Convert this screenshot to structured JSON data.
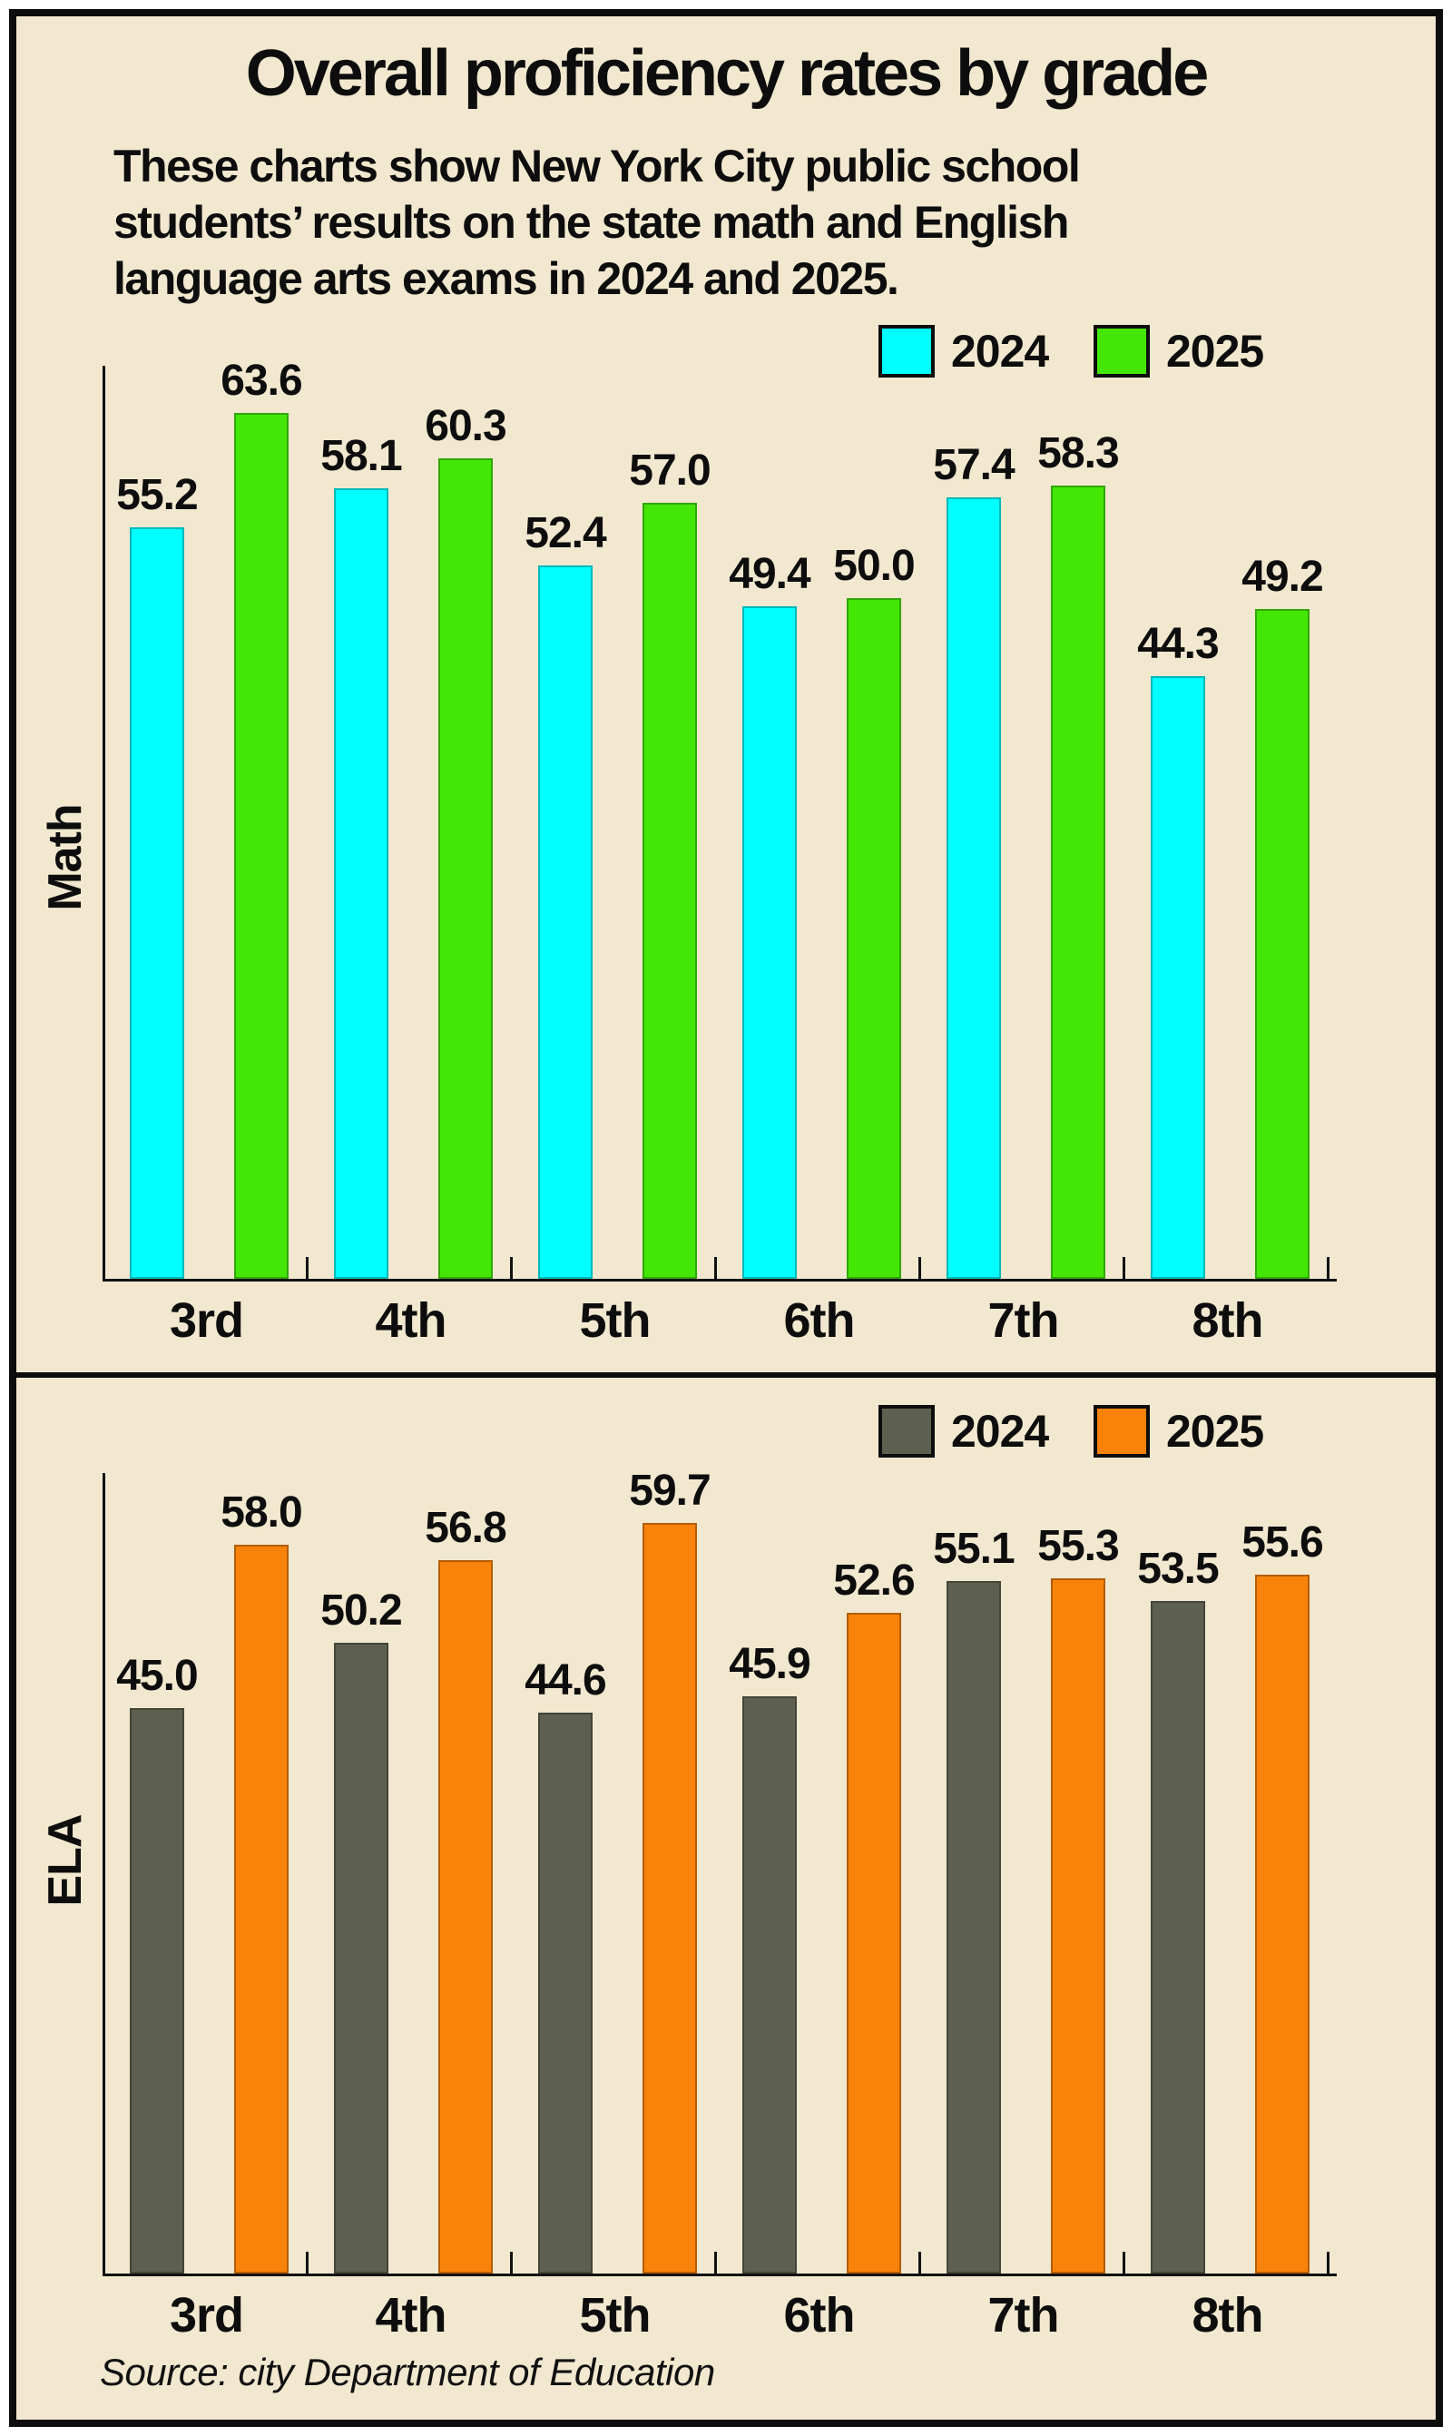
{
  "title": "Overall proficiency rates by grade",
  "subtitle_lines": [
    "These charts show New York City public school",
    "students’ results on the state math and English",
    "language arts exams in 2024 and 2025."
  ],
  "source": "Source: city Department of Education",
  "colors": {
    "background": "#F1E8CF",
    "border": "#0d0d0d",
    "math_2024": "#00FFFF",
    "math_2025": "#44E606",
    "ela_2024": "#5D604E",
    "ela_2025": "#F8820A"
  },
  "chart_data": [
    {
      "type": "bar",
      "title": "Math",
      "categories": [
        "3rd",
        "4th",
        "5th",
        "6th",
        "7th",
        "8th"
      ],
      "series": [
        {
          "name": "2024",
          "color": "#00FFFF",
          "values": [
            55.2,
            58.1,
            52.4,
            49.4,
            57.4,
            44.3
          ]
        },
        {
          "name": "2025",
          "color": "#44E606",
          "values": [
            63.6,
            60.3,
            57.0,
            50.0,
            58.3,
            49.2
          ]
        }
      ],
      "xlabel": "",
      "ylabel": "Math",
      "ylim": [
        0,
        67.1
      ],
      "grid": false,
      "legend_position": "top-right",
      "value_labels": true
    },
    {
      "type": "bar",
      "title": "ELA",
      "categories": [
        "3rd",
        "4th",
        "5th",
        "6th",
        "7th",
        "8th"
      ],
      "series": [
        {
          "name": "2024",
          "color": "#5D604E",
          "values": [
            45.0,
            50.2,
            44.6,
            45.9,
            55.1,
            53.5
          ]
        },
        {
          "name": "2025",
          "color": "#F8820A",
          "values": [
            58.0,
            56.8,
            59.7,
            52.6,
            55.3,
            55.6
          ]
        }
      ],
      "xlabel": "",
      "ylabel": "ELA",
      "ylim": [
        0,
        63.7
      ],
      "grid": false,
      "legend_position": "top-right",
      "value_labels": true
    }
  ]
}
